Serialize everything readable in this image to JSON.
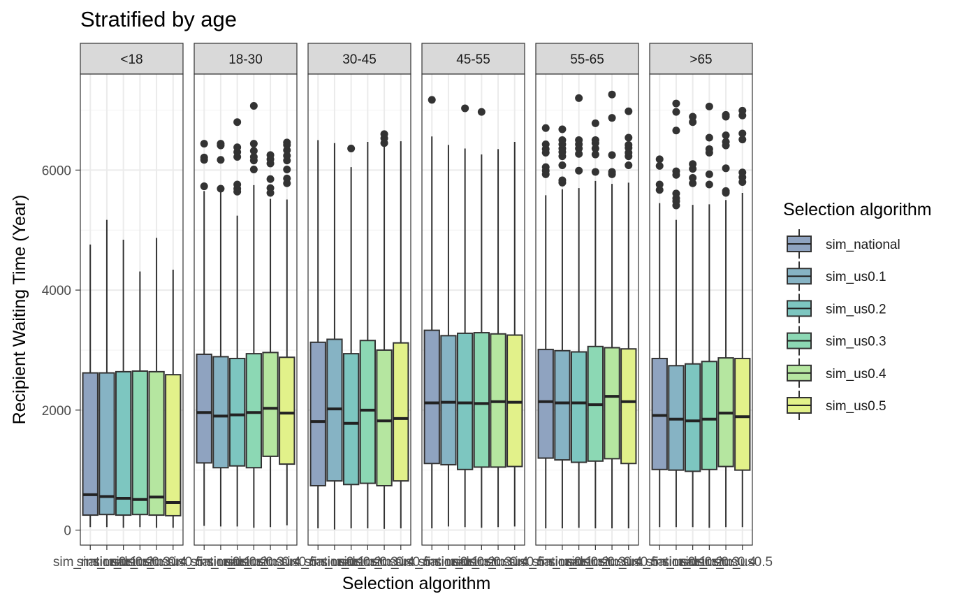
{
  "chart_data": {
    "type": "boxplot",
    "title": "Stratified by age",
    "xlabel": "Selection algorithm",
    "ylabel": "Recipient Waiting Time (Year)",
    "ylim": [
      -250,
      7600
    ],
    "yticks": [
      0,
      2000,
      4000,
      6000
    ],
    "grid": true,
    "legend": {
      "title": "Selection algorithm",
      "position": "right",
      "entries": [
        "sim_national",
        "sim_us0.1",
        "sim_us0.2",
        "sim_us0.3",
        "sim_us0.4",
        "sim_us0.5"
      ]
    },
    "categories": [
      "sim_national",
      "sim_us0.1",
      "sim_us0.2",
      "sim_us0.3",
      "sim_us0.4",
      "sim_us0.5"
    ],
    "colors": [
      "#8fa3c0",
      "#86b3c4",
      "#7dc6c0",
      "#8cd8b4",
      "#b5e6a0",
      "#e2f18a"
    ],
    "facets": [
      {
        "label": "<18",
        "boxes": [
          {
            "min": 50,
            "q1": 250,
            "median": 590,
            "q3": 2620,
            "max": 4760,
            "outliers": []
          },
          {
            "min": 50,
            "q1": 260,
            "median": 560,
            "q3": 2620,
            "max": 5170,
            "outliers": []
          },
          {
            "min": 40,
            "q1": 250,
            "median": 530,
            "q3": 2640,
            "max": 4840,
            "outliers": []
          },
          {
            "min": 50,
            "q1": 260,
            "median": 510,
            "q3": 2650,
            "max": 4310,
            "outliers": []
          },
          {
            "min": 40,
            "q1": 250,
            "median": 550,
            "q3": 2640,
            "max": 4870,
            "outliers": []
          },
          {
            "min": 40,
            "q1": 240,
            "median": 460,
            "q3": 2590,
            "max": 4340,
            "outliers": []
          }
        ]
      },
      {
        "label": "18-30",
        "boxes": [
          {
            "min": 70,
            "q1": 1120,
            "median": 1960,
            "q3": 2930,
            "max": 5650,
            "outliers": [
              5730,
              6170,
              6210,
              6440
            ]
          },
          {
            "min": 60,
            "q1": 1040,
            "median": 1900,
            "q3": 2890,
            "max": 5670,
            "outliers": [
              5690,
              6170,
              6410,
              6440
            ]
          },
          {
            "min": 60,
            "q1": 1070,
            "median": 1920,
            "q3": 2860,
            "max": 5240,
            "outliers": [
              5640,
              5690,
              5760,
              6220,
              6300,
              6380,
              6800
            ]
          },
          {
            "min": 40,
            "q1": 1040,
            "median": 1960,
            "q3": 2940,
            "max": 5750,
            "outliers": [
              6010,
              6160,
              6220,
              6320,
              6440,
              7070
            ]
          },
          {
            "min": 50,
            "q1": 1230,
            "median": 2030,
            "q3": 2960,
            "max": 5520,
            "outliers": [
              5620,
              5700,
              5850,
              6110,
              6180,
              6250
            ]
          },
          {
            "min": 80,
            "q1": 1100,
            "median": 1950,
            "q3": 2880,
            "max": 5510,
            "outliers": [
              5780,
              5860,
              6010,
              6160,
              6240,
              6330,
              6420,
              6460
            ]
          }
        ]
      },
      {
        "label": "30-45",
        "boxes": [
          {
            "min": 30,
            "q1": 740,
            "median": 1810,
            "q3": 3130,
            "max": 6500,
            "outliers": []
          },
          {
            "min": 10,
            "q1": 820,
            "median": 2020,
            "q3": 3180,
            "max": 6450,
            "outliers": []
          },
          {
            "min": 30,
            "q1": 760,
            "median": 1780,
            "q3": 2940,
            "max": 6050,
            "outliers": [
              6360
            ]
          },
          {
            "min": 30,
            "q1": 780,
            "median": 2000,
            "q3": 3160,
            "max": 6470,
            "outliers": []
          },
          {
            "min": 20,
            "q1": 740,
            "median": 1820,
            "q3": 3000,
            "max": 6400,
            "outliers": [
              6450,
              6530,
              6600
            ]
          },
          {
            "min": 30,
            "q1": 820,
            "median": 1860,
            "q3": 3120,
            "max": 6480,
            "outliers": []
          }
        ]
      },
      {
        "label": "45-55",
        "boxes": [
          {
            "min": 30,
            "q1": 1110,
            "median": 2120,
            "q3": 3330,
            "max": 6560,
            "outliers": [
              7170
            ]
          },
          {
            "min": 60,
            "q1": 1090,
            "median": 2130,
            "q3": 3240,
            "max": 6420,
            "outliers": []
          },
          {
            "min": 50,
            "q1": 1010,
            "median": 2120,
            "q3": 3280,
            "max": 6360,
            "outliers": [
              7030
            ]
          },
          {
            "min": 40,
            "q1": 1050,
            "median": 2110,
            "q3": 3290,
            "max": 6260,
            "outliers": [
              6970
            ]
          },
          {
            "min": 50,
            "q1": 1050,
            "median": 2140,
            "q3": 3270,
            "max": 6350,
            "outliers": []
          },
          {
            "min": 60,
            "q1": 1060,
            "median": 2130,
            "q3": 3250,
            "max": 6470,
            "outliers": []
          }
        ]
      },
      {
        "label": "55-65",
        "boxes": [
          {
            "min": 30,
            "q1": 1200,
            "median": 2140,
            "q3": 3010,
            "max": 5580,
            "outliers": [
              5930,
              5990,
              6050,
              6290,
              6350,
              6430,
              6700
            ]
          },
          {
            "min": 30,
            "q1": 1170,
            "median": 2120,
            "q3": 2990,
            "max": 5680,
            "outliers": [
              5790,
              5830,
              6080,
              6230,
              6300,
              6360,
              6430,
              6500,
              6680
            ]
          },
          {
            "min": 40,
            "q1": 1130,
            "median": 2120,
            "q3": 2970,
            "max": 5700,
            "outliers": [
              5990,
              6270,
              6360,
              6430,
              6500,
              7200
            ]
          },
          {
            "min": 30,
            "q1": 1150,
            "median": 2090,
            "q3": 3060,
            "max": 5820,
            "outliers": [
              5970,
              6260,
              6360,
              6450,
              6500,
              6780
            ]
          },
          {
            "min": 30,
            "q1": 1190,
            "median": 2230,
            "q3": 3040,
            "max": 5770,
            "outliers": [
              5930,
              5970,
              6250,
              6870,
              7260
            ]
          },
          {
            "min": 30,
            "q1": 1110,
            "median": 2140,
            "q3": 3020,
            "max": 5790,
            "outliers": [
              6080,
              6230,
              6290,
              6370,
              6420,
              6540,
              6980
            ]
          }
        ]
      },
      {
        "label": ">65",
        "boxes": [
          {
            "min": 50,
            "q1": 1010,
            "median": 1910,
            "q3": 2860,
            "max": 5450,
            "outliers": [
              5670,
              5760,
              6070,
              6180
            ]
          },
          {
            "min": 50,
            "q1": 1000,
            "median": 1850,
            "q3": 2740,
            "max": 5170,
            "outliers": [
              5410,
              5480,
              5530,
              5610,
              5920,
              5980,
              6660,
              6970,
              7110
            ]
          },
          {
            "min": 50,
            "q1": 980,
            "median": 1820,
            "q3": 2770,
            "max": 5420,
            "outliers": [
              5780,
              5870,
              6020,
              6100,
              6800,
              6890
            ]
          },
          {
            "min": 40,
            "q1": 1010,
            "median": 1850,
            "q3": 2810,
            "max": 5430,
            "outliers": [
              5760,
              5930,
              6290,
              6350,
              6540,
              7060
            ]
          },
          {
            "min": 50,
            "q1": 1060,
            "median": 1950,
            "q3": 2870,
            "max": 5500,
            "outliers": [
              5620,
              5650,
              6030,
              6410,
              6470,
              6580,
              6890,
              6920
            ]
          },
          {
            "min": 50,
            "q1": 1000,
            "median": 1890,
            "q3": 2860,
            "max": 5620,
            "outliers": [
              5800,
              5880,
              5960,
              6510,
              6610,
              6910,
              6990
            ]
          }
        ]
      }
    ]
  }
}
